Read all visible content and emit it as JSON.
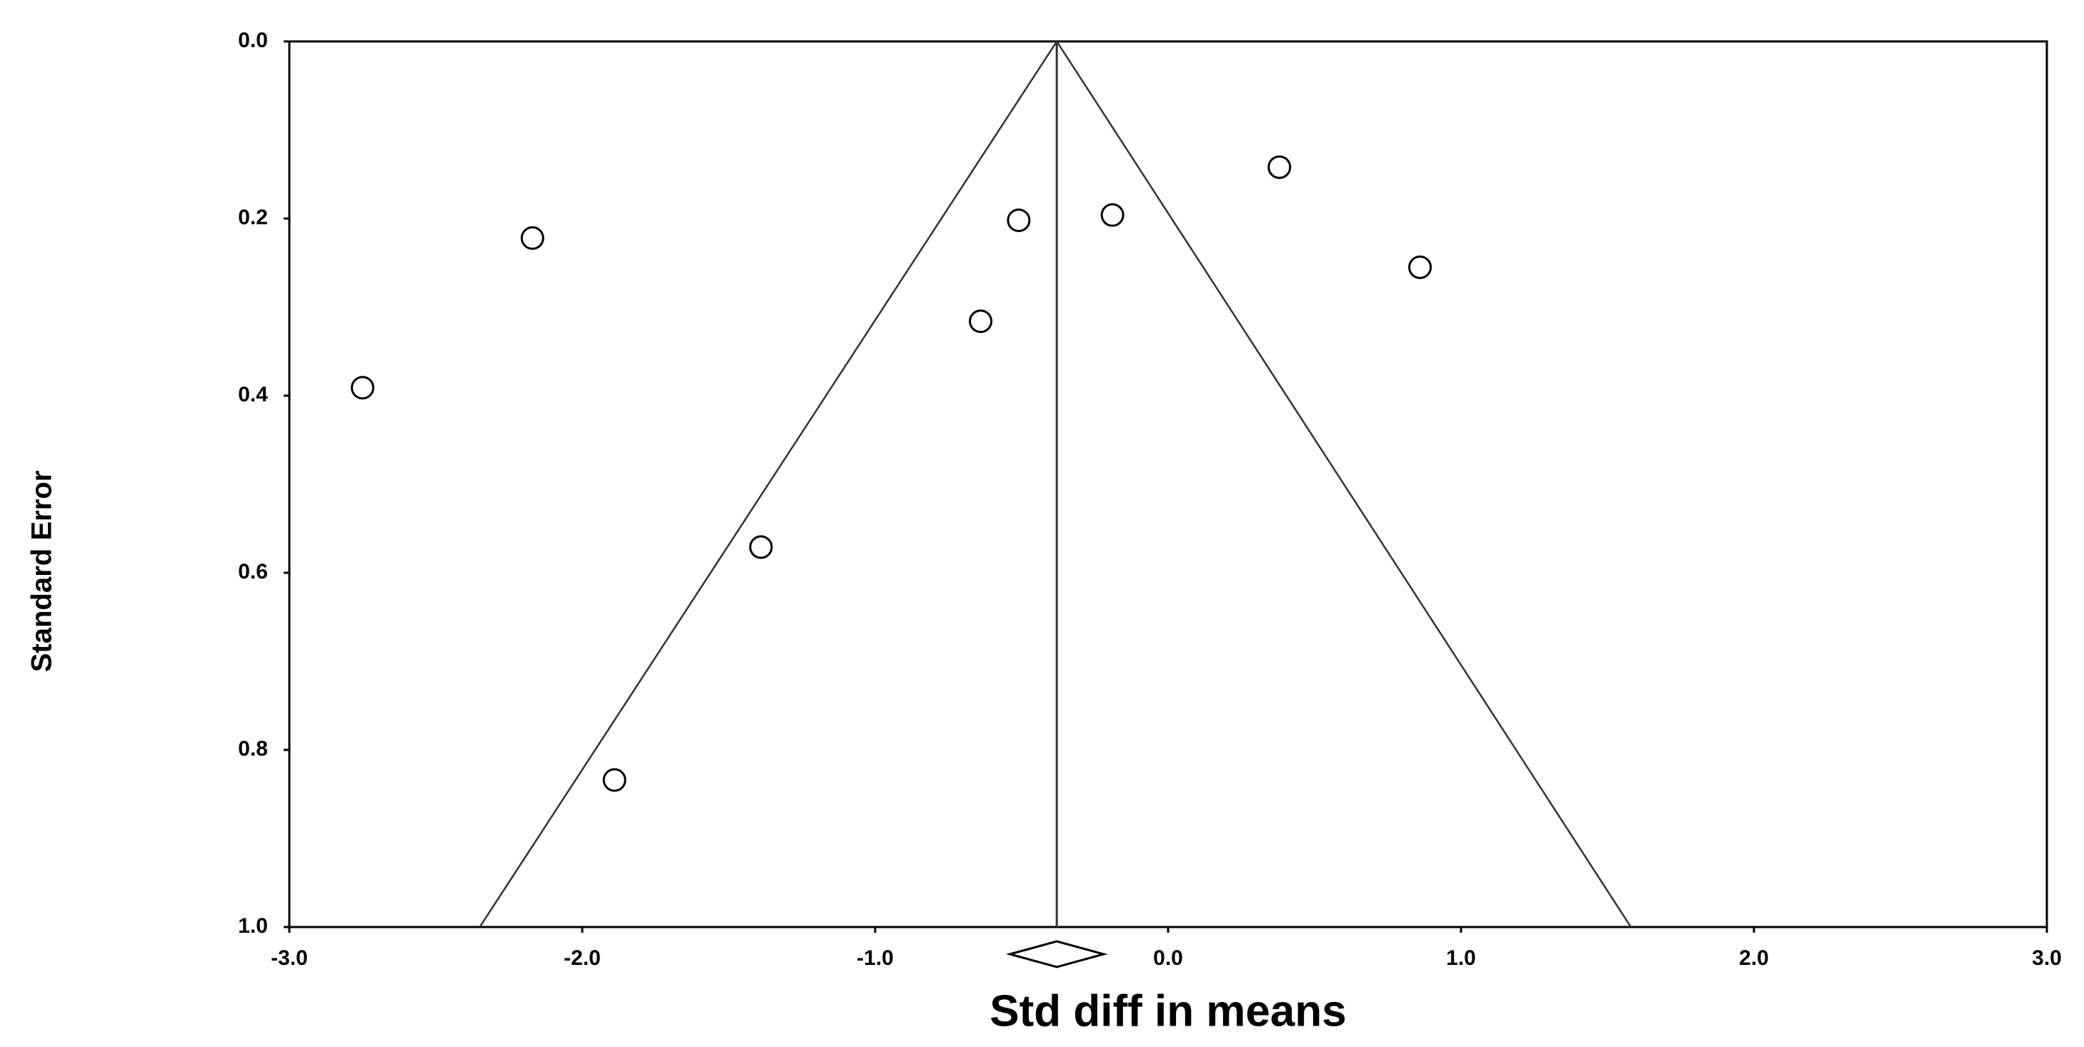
{
  "chart_data": {
    "type": "scatter",
    "x_label": "Std diff in means",
    "y_label": "Standard Error",
    "x": [
      -2.75,
      -2.17,
      -1.89,
      -1.39,
      -0.64,
      -0.51,
      -0.19,
      0.38,
      0.86
    ],
    "values": [
      0.391,
      0.222,
      0.834,
      0.571,
      0.316,
      0.202,
      0.196,
      0.142,
      0.255
    ],
    "color": "#000000",
    "xlim": [
      -3.0,
      3.0
    ],
    "ylim": [
      0,
      1.0
    ],
    "y_inverted": true,
    "xticks": [
      {
        "value": -3.0,
        "label": "-3.0"
      },
      {
        "value": -2.0,
        "label": "-2.0"
      },
      {
        "value": -1.0,
        "label": "-1.0"
      },
      {
        "value": 0,
        "label": "0.0"
      },
      {
        "value": 1.0,
        "label": "1.0"
      },
      {
        "value": 2.0,
        "label": "2.0"
      },
      {
        "value": 3.0,
        "label": "3.0"
      }
    ],
    "yticks": [
      {
        "value": 0,
        "label": "0.0"
      },
      0.2,
      0.4,
      0.6,
      0.8,
      {
        "value": 1.0,
        "label": "1.0"
      }
    ],
    "mean": -0.38,
    "funnel_limits_at_ylim_max": [
      -2.35,
      1.58
    ],
    "summary_ci": [
      -0.54,
      -0.22
    ],
    "grid": false
  }
}
